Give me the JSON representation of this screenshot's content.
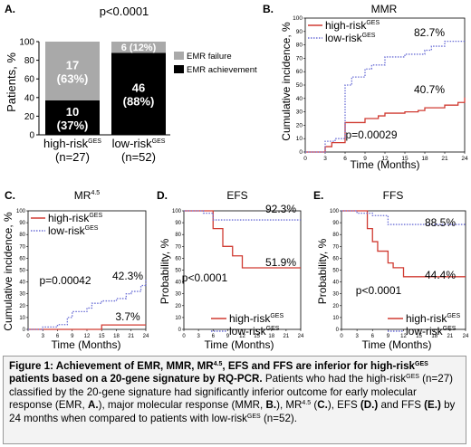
{
  "colors": {
    "high": "#d03b32",
    "low": "#6b6fd6",
    "emr_failure": "#a9a9a9",
    "emr_achievement": "#000000"
  },
  "panels": {
    "A": {
      "letter": "A.",
      "pvalue": "p<0.0001",
      "ylabel": "Patients, %",
      "legend": {
        "failure": "EMR failure",
        "achievement": "EMR achievement"
      }
    },
    "B": {
      "letter": "B.",
      "title": "MMR",
      "ylabel": "Cumulative incidence, %",
      "xlabel": "Time (Months)",
      "high_label": "40.7%",
      "low_label": "82.7%",
      "pvalue": "p=0.00029"
    },
    "C": {
      "letter": "C.",
      "title": "MR4.5",
      "ylabel": "Cumulative incidence, %",
      "xlabel": "Time (Months)",
      "high_label": "3.7%",
      "low_label": "42.3%",
      "pvalue": "p=0.00042"
    },
    "D": {
      "letter": "D.",
      "title": "EFS",
      "ylabel": "Probability, %",
      "xlabel": "Time (Months)",
      "high_label": "51.9%",
      "low_label": "92.3%",
      "pvalue": "p<0.0001"
    },
    "E": {
      "letter": "E.",
      "title": "FFS",
      "ylabel": "Probability, %",
      "xlabel": "Time (Months)",
      "high_label": "44.4%",
      "low_label": "88.5%",
      "pvalue": "p<0.0001"
    }
  },
  "legend_text": {
    "high": "high-risk",
    "low": "low-risk",
    "sup": "GES"
  },
  "caption": {
    "lead": "Figure 1: Achievement of EMR, MMR, MR",
    "lead_sup": "4.5",
    "lead2": ", EFS and FFS are inferior for high-risk",
    "lead2_sup": "GES",
    "lead3": " patients based on a 20-gene signature by RQ-PCR.",
    "t1": " Patients who had the high-risk",
    "t1_sup": "GES",
    "t2": " (n=27) classified by the 20-gene signature had significantly inferior outcome for early molecular response (EMR, ",
    "t2_b": "A.",
    "t3": "), major molecular response (MMR, ",
    "t3_b": "B.",
    "t4": "), MR",
    "t4_sup": "4.5",
    "t5": " (",
    "t5_b": "C.",
    "t6": "), EFS ",
    "t6_b": "(D.)",
    "t7": " and FFS ",
    "t7_b": "(E.)",
    "t8": " by 24 months when compared to patients with low-risk",
    "t8_sup": "GES",
    "t9": " (n=52)."
  },
  "chart_data": [
    {
      "panel": "A",
      "type": "bar",
      "stacked": true,
      "categories": [
        "high-riskGES (n=27)",
        "low-riskGES (n=52)"
      ],
      "series": [
        {
          "name": "EMR achievement",
          "values": [
            37,
            88
          ],
          "counts": [
            10,
            46
          ],
          "labels": [
            "10 (37%)",
            "46 (88%)"
          ]
        },
        {
          "name": "EMR failure",
          "values": [
            63,
            12
          ],
          "counts": [
            17,
            6
          ],
          "labels": [
            "17 (63%)",
            "6 (12%)"
          ]
        }
      ],
      "ylabel": "Patients, %",
      "ylim": [
        0,
        100
      ],
      "yticks": [
        0,
        20,
        40,
        60,
        80,
        100
      ]
    },
    {
      "panel": "B",
      "type": "line",
      "step": true,
      "title": "MMR",
      "xlabel": "Time (Months)",
      "ylabel": "Cumulative incidence, %",
      "xlim": [
        0,
        24
      ],
      "ylim": [
        0,
        100
      ],
      "xticks": [
        0,
        3,
        6,
        9,
        12,
        15,
        18,
        21,
        24
      ],
      "yticks": [
        0,
        10,
        20,
        30,
        40,
        50,
        60,
        70,
        80,
        90,
        100
      ],
      "series": [
        {
          "name": "high-riskGES",
          "style": "solid",
          "x": [
            0,
            3,
            4,
            6,
            9,
            11,
            12,
            15,
            17,
            18,
            21,
            23,
            24
          ],
          "y": [
            0,
            4,
            7,
            22,
            25,
            27,
            29,
            30,
            31,
            33,
            35,
            37,
            40.7
          ]
        },
        {
          "name": "low-riskGES",
          "style": "dotted",
          "x": [
            0,
            3,
            4.5,
            6,
            7,
            9,
            10,
            12,
            15,
            18,
            19,
            21,
            24
          ],
          "y": [
            0,
            8,
            10,
            50,
            56,
            62,
            65,
            71,
            73,
            76,
            79,
            82.7,
            82.7
          ]
        }
      ],
      "pvalue": "p=0.00029"
    },
    {
      "panel": "C",
      "type": "line",
      "step": true,
      "title": "MR4.5",
      "xlabel": "Time (Months)",
      "ylabel": "Cumulative incidence, %",
      "xlim": [
        0,
        24
      ],
      "ylim": [
        0,
        100
      ],
      "xticks": [
        0,
        3,
        6,
        9,
        12,
        15,
        18,
        21,
        24
      ],
      "yticks": [
        0,
        10,
        20,
        30,
        40,
        50,
        60,
        70,
        80,
        90,
        100
      ],
      "series": [
        {
          "name": "high-riskGES",
          "style": "solid",
          "x": [
            0,
            15,
            24
          ],
          "y": [
            0,
            3.7,
            3.7
          ]
        },
        {
          "name": "low-riskGES",
          "style": "dotted",
          "x": [
            0,
            3,
            6,
            8,
            9,
            12,
            13,
            15,
            18,
            20,
            21,
            23,
            24
          ],
          "y": [
            0,
            2,
            4,
            10,
            15,
            18,
            22,
            24,
            26,
            30,
            32,
            37,
            42.3
          ]
        }
      ],
      "pvalue": "p=0.00042"
    },
    {
      "panel": "D",
      "type": "line",
      "step": true,
      "title": "EFS",
      "xlabel": "Time (Months)",
      "ylabel": "Probability, %",
      "xlim": [
        0,
        24
      ],
      "ylim": [
        0,
        100
      ],
      "xticks": [
        0,
        3,
        6,
        9,
        12,
        15,
        18,
        21,
        24
      ],
      "yticks": [
        0,
        10,
        20,
        30,
        40,
        50,
        60,
        70,
        80,
        90,
        100
      ],
      "series": [
        {
          "name": "high-riskGES",
          "style": "solid",
          "x": [
            0,
            6,
            8,
            10,
            12,
            24
          ],
          "y": [
            100,
            85,
            70,
            62,
            51.9,
            51.9
          ]
        },
        {
          "name": "low-riskGES",
          "style": "dotted",
          "x": [
            0,
            4,
            6,
            24
          ],
          "y": [
            100,
            98,
            92.3,
            92.3
          ]
        }
      ],
      "pvalue": "p<0.0001"
    },
    {
      "panel": "E",
      "type": "line",
      "step": true,
      "title": "FFS",
      "xlabel": "Time (Months)",
      "ylabel": "Probability, %",
      "xlim": [
        0,
        24
      ],
      "ylim": [
        0,
        100
      ],
      "xticks": [
        0,
        3,
        6,
        9,
        12,
        15,
        18,
        21,
        24
      ],
      "yticks": [
        0,
        10,
        20,
        30,
        40,
        50,
        60,
        70,
        80,
        90,
        100
      ],
      "series": [
        {
          "name": "high-riskGES",
          "style": "solid",
          "x": [
            0,
            5,
            6,
            7,
            9,
            10,
            12,
            24
          ],
          "y": [
            100,
            85,
            74,
            66,
            56,
            52,
            44.4,
            44.4
          ]
        },
        {
          "name": "low-riskGES",
          "style": "dotted",
          "x": [
            0,
            3,
            6,
            9,
            24
          ],
          "y": [
            100,
            98,
            96,
            88.5,
            88.5
          ]
        }
      ],
      "pvalue": "p<0.0001"
    }
  ]
}
